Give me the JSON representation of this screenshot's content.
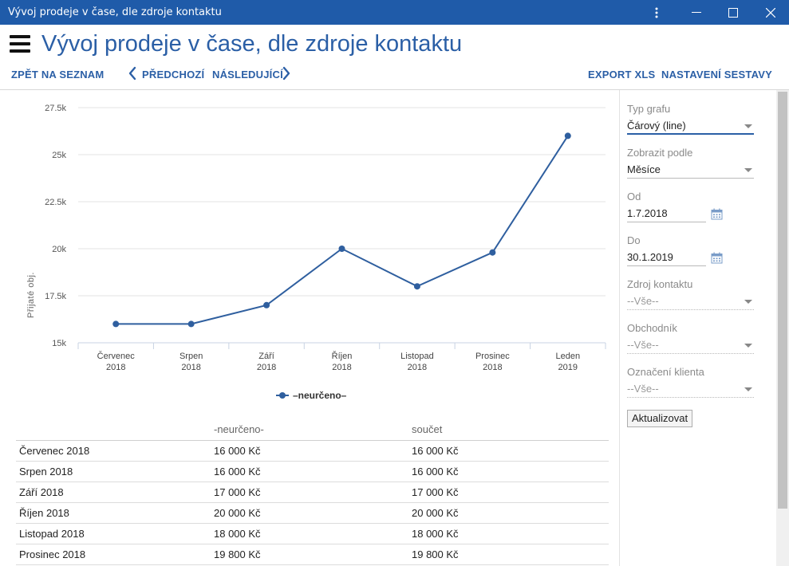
{
  "window": {
    "title": "Vývoj prodeje v čase, dle zdroje kontaktu"
  },
  "header": {
    "title": "Vývoj prodeje v čase, dle zdroje kontaktu",
    "back_label": "ZPĚT NA SEZNAM",
    "prev_label": "PŘEDCHOZÍ",
    "next_label": "NÁSLEDUJÍCÍ",
    "export_label": "EXPORT XLS",
    "settings_label": "NASTAVENÍ SESTAVY"
  },
  "colors": {
    "accent": "#2b5fa6",
    "titlebar": "#1f5ba9",
    "series": "#2f5f9f"
  },
  "chart_data": {
    "type": "line",
    "categories": [
      [
        "Červenec",
        "2018"
      ],
      [
        "Srpen",
        "2018"
      ],
      [
        "Září",
        "2018"
      ],
      [
        "Říjen",
        "2018"
      ],
      [
        "Listopad",
        "2018"
      ],
      [
        "Prosinec",
        "2018"
      ],
      [
        "Leden",
        "2019"
      ]
    ],
    "series": [
      {
        "name": "–neurčeno–",
        "values": [
          16000,
          16000,
          17000,
          20000,
          18000,
          19800,
          26000
        ]
      }
    ],
    "ylabel": "Přijaté obj.",
    "yticks": [
      "15k",
      "17.5k",
      "20k",
      "22.5k",
      "25k",
      "27.5k"
    ],
    "ylim": [
      15000,
      27500
    ],
    "grid": true,
    "legend": "bottom"
  },
  "table": {
    "headers": [
      "",
      "-neurčeno-",
      "součet"
    ],
    "rows": [
      [
        "Červenec 2018",
        "16 000 Kč",
        "16 000 Kč"
      ],
      [
        "Srpen 2018",
        "16 000 Kč",
        "16 000 Kč"
      ],
      [
        "Září 2018",
        "17 000 Kč",
        "17 000 Kč"
      ],
      [
        "Říjen 2018",
        "20 000 Kč",
        "20 000 Kč"
      ],
      [
        "Listopad 2018",
        "18 000 Kč",
        "18 000 Kč"
      ],
      [
        "Prosinec 2018",
        "19 800 Kč",
        "19 800 Kč"
      ]
    ]
  },
  "filters": {
    "chart_type_label": "Typ grafu",
    "chart_type_value": "Čárový (line)",
    "group_by_label": "Zobrazit podle",
    "group_by_value": "Měsíce",
    "from_label": "Od",
    "from_value": "1.7.2018",
    "to_label": "Do",
    "to_value": "30.1.2019",
    "source_label": "Zdroj kontaktu",
    "source_value": "--Vše--",
    "salesman_label": "Obchodník",
    "salesman_value": "--Vše--",
    "client_tag_label": "Označení klienta",
    "client_tag_value": "--Vše--",
    "update_label": "Aktualizovat"
  }
}
